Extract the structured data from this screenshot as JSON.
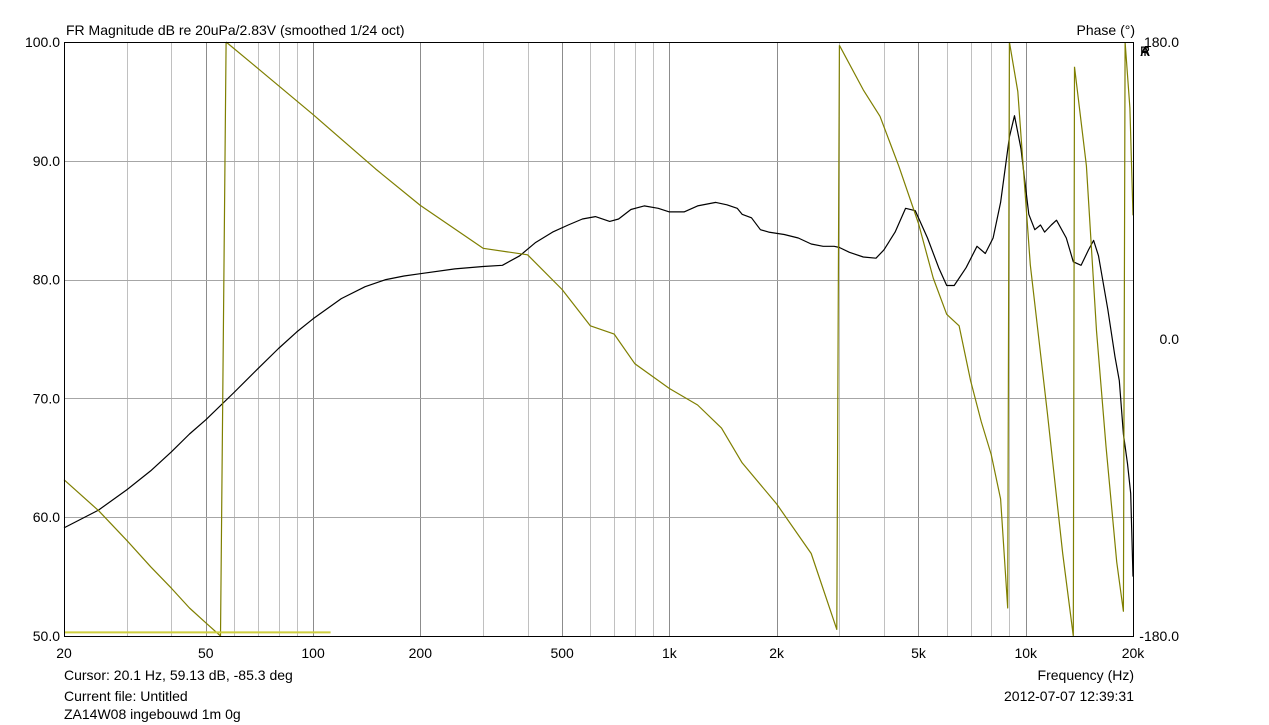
{
  "header": {
    "title": "FR Magnitude dB re 20uPa/2.83V (smoothed 1/24 oct)",
    "right_title": "Phase (°)",
    "brand": [
      "A",
      "R",
      "T",
      "A"
    ]
  },
  "footer": {
    "cursor": "Cursor: 20.1 Hz, 59.13 dB, -85.3 deg",
    "current_file": "Current file: Untitled",
    "description": "ZA14W08 ingebouwd 1m 0g",
    "x_axis_label": "Frequency (Hz)",
    "timestamp": "2012-07-07  12:39:31"
  },
  "colors": {
    "magnitude": "#000000",
    "phase": "#7f7f00",
    "bottom_bar": "#cfcf3f",
    "grid": "#a6a6a6",
    "frame": "#000000"
  },
  "chart_data": {
    "type": "line",
    "x_scale": "log",
    "grid": true,
    "title": "FR Magnitude dB re 20uPa/2.83V (smoothed 1/24 oct)",
    "xlabel": "Frequency (Hz)",
    "ylabel": "",
    "y2label": "Phase (°)",
    "xlim": [
      20,
      20000
    ],
    "ylim": [
      50,
      100
    ],
    "y2lim": [
      -180,
      180
    ],
    "x_ticks": [
      {
        "value": 20,
        "label": "20"
      },
      {
        "value": 50,
        "label": "50"
      },
      {
        "value": 100,
        "label": "100"
      },
      {
        "value": 200,
        "label": "200"
      },
      {
        "value": 500,
        "label": "500"
      },
      {
        "value": 1000,
        "label": "1k"
      },
      {
        "value": 2000,
        "label": "2k"
      },
      {
        "value": 5000,
        "label": "5k"
      },
      {
        "value": 10000,
        "label": "10k"
      },
      {
        "value": 20000,
        "label": "20k"
      }
    ],
    "y_ticks": [
      {
        "value": 50,
        "label": "50.0"
      },
      {
        "value": 60,
        "label": "60.0"
      },
      {
        "value": 70,
        "label": "70.0"
      },
      {
        "value": 80,
        "label": "80.0"
      },
      {
        "value": 90,
        "label": "90.0"
      },
      {
        "value": 100,
        "label": "100.0"
      }
    ],
    "y2_ticks": [
      {
        "value": 180,
        "label": "180.0"
      },
      {
        "value": 0,
        "label": "0.0"
      },
      {
        "value": -180,
        "label": "-180.0"
      }
    ],
    "series": [
      {
        "axis": "left",
        "color": "#000000",
        "points": [
          [
            20,
            59.1
          ],
          [
            25,
            60.6
          ],
          [
            30,
            62.3
          ],
          [
            35,
            63.9
          ],
          [
            40,
            65.5
          ],
          [
            45,
            67.0
          ],
          [
            50,
            68.2
          ],
          [
            60,
            70.5
          ],
          [
            70,
            72.5
          ],
          [
            80,
            74.2
          ],
          [
            90,
            75.6
          ],
          [
            100,
            76.7
          ],
          [
            120,
            78.4
          ],
          [
            140,
            79.4
          ],
          [
            160,
            80.0
          ],
          [
            180,
            80.3
          ],
          [
            200,
            80.5
          ],
          [
            250,
            80.9
          ],
          [
            300,
            81.1
          ],
          [
            340,
            81.2
          ],
          [
            380,
            82.0
          ],
          [
            420,
            83.1
          ],
          [
            470,
            84.0
          ],
          [
            520,
            84.6
          ],
          [
            570,
            85.1
          ],
          [
            620,
            85.3
          ],
          [
            680,
            84.9
          ],
          [
            720,
            85.1
          ],
          [
            780,
            85.9
          ],
          [
            850,
            86.2
          ],
          [
            930,
            86.0
          ],
          [
            1000,
            85.7
          ],
          [
            1100,
            85.7
          ],
          [
            1200,
            86.2
          ],
          [
            1350,
            86.5
          ],
          [
            1450,
            86.3
          ],
          [
            1550,
            86.0
          ],
          [
            1600,
            85.5
          ],
          [
            1700,
            85.2
          ],
          [
            1800,
            84.2
          ],
          [
            1900,
            84.0
          ],
          [
            2100,
            83.8
          ],
          [
            2300,
            83.5
          ],
          [
            2500,
            83.0
          ],
          [
            2700,
            82.8
          ],
          [
            2900,
            82.8
          ],
          [
            3000,
            82.7
          ],
          [
            3200,
            82.3
          ],
          [
            3500,
            81.9
          ],
          [
            3800,
            81.8
          ],
          [
            4000,
            82.5
          ],
          [
            4300,
            84.0
          ],
          [
            4600,
            86.0
          ],
          [
            4900,
            85.8
          ],
          [
            5300,
            83.5
          ],
          [
            5700,
            81.0
          ],
          [
            6000,
            79.5
          ],
          [
            6300,
            79.5
          ],
          [
            6800,
            81.0
          ],
          [
            7300,
            82.8
          ],
          [
            7700,
            82.2
          ],
          [
            8100,
            83.5
          ],
          [
            8500,
            86.5
          ],
          [
            9000,
            92.0
          ],
          [
            9300,
            93.8
          ],
          [
            9700,
            91.0
          ],
          [
            10200,
            85.5
          ],
          [
            10600,
            84.2
          ],
          [
            11000,
            84.6
          ],
          [
            11300,
            84.0
          ],
          [
            11800,
            84.6
          ],
          [
            12200,
            85.0
          ],
          [
            13000,
            83.5
          ],
          [
            13600,
            81.5
          ],
          [
            14300,
            81.2
          ],
          [
            15000,
            82.5
          ],
          [
            15500,
            83.3
          ],
          [
            16000,
            82.0
          ],
          [
            17000,
            77.5
          ],
          [
            17800,
            73.5
          ],
          [
            18300,
            71.5
          ],
          [
            18800,
            67.0
          ],
          [
            19300,
            64.5
          ],
          [
            19700,
            62.0
          ],
          [
            20000,
            55.0
          ]
        ]
      },
      {
        "axis": "right",
        "color": "#7f7f00",
        "segments": [
          [
            [
              20,
              -85.3
            ],
            [
              25,
              -104
            ],
            [
              30,
              -122
            ],
            [
              35,
              -138
            ],
            [
              40,
              -151
            ],
            [
              45,
              -163
            ],
            [
              50,
              -172
            ],
            [
              55,
              -180
            ]
          ],
          [
            [
              57,
              180
            ],
            [
              70,
              164
            ],
            [
              100,
              136
            ],
            [
              150,
              103
            ],
            [
              200,
              81
            ],
            [
              300,
              55
            ],
            [
              400,
              51
            ],
            [
              500,
              30
            ],
            [
              600,
              8
            ],
            [
              700,
              3
            ],
            [
              800,
              -15
            ],
            [
              1000,
              -30
            ],
            [
              1200,
              -40
            ],
            [
              1400,
              -54
            ],
            [
              1600,
              -75
            ],
            [
              2000,
              -100
            ],
            [
              2500,
              -130
            ],
            [
              2950,
              -176
            ]
          ],
          [
            [
              3000,
              178
            ],
            [
              3500,
              151
            ],
            [
              3900,
              135
            ],
            [
              4400,
              105
            ],
            [
              5000,
              70
            ],
            [
              5500,
              37
            ],
            [
              6000,
              15
            ],
            [
              6500,
              8
            ],
            [
              7000,
              -25
            ],
            [
              7500,
              -50
            ],
            [
              8000,
              -70
            ],
            [
              8500,
              -97
            ],
            [
              8900,
              -163
            ]
          ],
          [
            [
              9000,
              180
            ],
            [
              9500,
              150
            ],
            [
              10300,
              45
            ],
            [
              11500,
              -45
            ],
            [
              12700,
              -130
            ],
            [
              13600,
              -180
            ]
          ],
          [
            [
              13700,
              165
            ],
            [
              14800,
              105
            ],
            [
              15800,
              5
            ],
            [
              16800,
              -65
            ],
            [
              18000,
              -135
            ],
            [
              18800,
              -165
            ]
          ],
          [
            [
              19000,
              180
            ],
            [
              19600,
              140
            ],
            [
              20000,
              75
            ]
          ]
        ]
      },
      {
        "axis": "left",
        "color": "#cfcf3f",
        "points": [
          [
            20,
            50.3
          ],
          [
            112,
            50.3
          ]
        ]
      }
    ]
  }
}
